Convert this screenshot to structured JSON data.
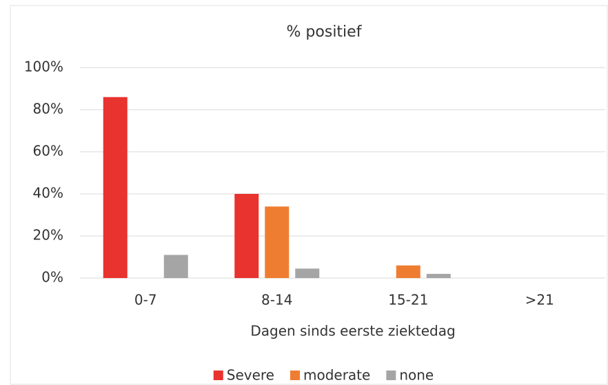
{
  "chart_data": {
    "type": "bar",
    "title": "% positief",
    "x_label": "Dagen sinds eerste ziektedag",
    "categories": [
      "0-7",
      "8-14",
      "15-21",
      ">21"
    ],
    "series": [
      {
        "name": "Severe",
        "color": "#e8332f",
        "values": [
          86,
          40,
          0,
          0
        ]
      },
      {
        "name": "moderate",
        "color": "#ef7d31",
        "values": [
          0,
          34,
          6,
          0
        ]
      },
      {
        "name": "none",
        "color": "#a5a5a5",
        "values": [
          11,
          4.5,
          2,
          0
        ]
      }
    ],
    "ylim": [
      0,
      100
    ],
    "yticks": [
      {
        "value": 0,
        "label": "0%"
      },
      {
        "value": 20,
        "label": "20%"
      },
      {
        "value": 40,
        "label": "40%"
      },
      {
        "value": 60,
        "label": "60%"
      },
      {
        "value": 80,
        "label": "80%"
      },
      {
        "value": 100,
        "label": "100%"
      }
    ],
    "grid": true,
    "legend": "bottom"
  }
}
